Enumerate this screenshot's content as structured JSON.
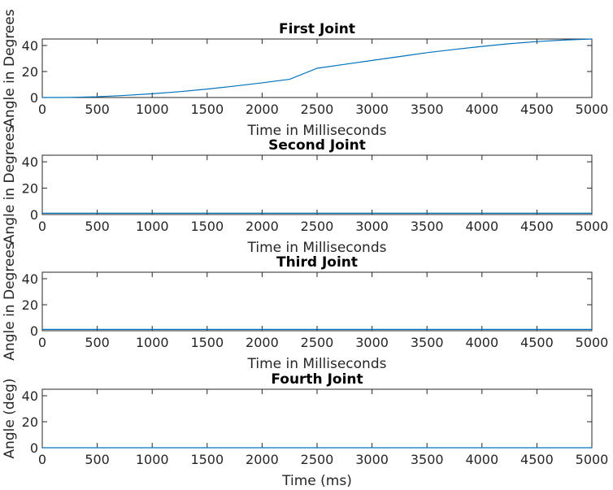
{
  "colors": {
    "series": "#0072bd",
    "axis": "#262626"
  },
  "chart_data": [
    {
      "type": "line",
      "title": "First Joint",
      "xlabel": "Time in Milliseconds",
      "ylabel": "Angle in Degrees",
      "xlim": [
        0,
        5000
      ],
      "ylim": [
        0,
        45
      ],
      "xticks": [
        0,
        500,
        1000,
        1500,
        2000,
        2500,
        3000,
        3500,
        4000,
        4500,
        5000
      ],
      "yticks": [
        0,
        20,
        40
      ],
      "grid": false,
      "series": [
        {
          "x": [
            0,
            250,
            500,
            750,
            1000,
            1250,
            1500,
            1750,
            2000,
            2250,
            2500,
            2750,
            3000,
            3250,
            3500,
            3750,
            4000,
            4250,
            4500,
            4750,
            5000
          ],
          "y": [
            0,
            0.1,
            0.6,
            1.6,
            2.9,
            4.5,
            6.5,
            8.8,
            11.3,
            14.0,
            22.5,
            25.5,
            28.5,
            31.5,
            34.5,
            37.0,
            39.3,
            41.4,
            43.0,
            44.2,
            45
          ]
        }
      ]
    },
    {
      "type": "line",
      "title": "Second Joint",
      "xlabel": "Time in Milliseconds",
      "ylabel": "Angle in Degrees",
      "xlim": [
        0,
        5000
      ],
      "ylim": [
        0,
        45
      ],
      "xticks": [
        0,
        500,
        1000,
        1500,
        2000,
        2500,
        3000,
        3500,
        4000,
        4500,
        5000
      ],
      "yticks": [
        0,
        20,
        40
      ],
      "grid": false,
      "series": [
        {
          "x": [
            0,
            5000
          ],
          "y": [
            1,
            1
          ]
        }
      ]
    },
    {
      "type": "line",
      "title": "Third Joint",
      "xlabel": "Time in Milliseconds",
      "ylabel": "Angle in Degrees",
      "xlim": [
        0,
        5000
      ],
      "ylim": [
        0,
        45
      ],
      "xticks": [
        0,
        500,
        1000,
        1500,
        2000,
        2500,
        3000,
        3500,
        4000,
        4500,
        5000
      ],
      "yticks": [
        0,
        20,
        40
      ],
      "grid": false,
      "series": [
        {
          "x": [
            0,
            5000
          ],
          "y": [
            1,
            1
          ]
        }
      ]
    },
    {
      "type": "line",
      "title": "Fourth Joint",
      "xlabel": "Time (ms)",
      "ylabel": "Angle (deg)",
      "xlim": [
        0,
        5000
      ],
      "ylim": [
        0,
        45
      ],
      "xticks": [
        0,
        500,
        1000,
        1500,
        2000,
        2500,
        3000,
        3500,
        4000,
        4500,
        5000
      ],
      "yticks": [
        0,
        20,
        40
      ],
      "grid": false,
      "series": [
        {
          "x": [
            0,
            5000
          ],
          "y": [
            0,
            0
          ]
        }
      ]
    }
  ]
}
